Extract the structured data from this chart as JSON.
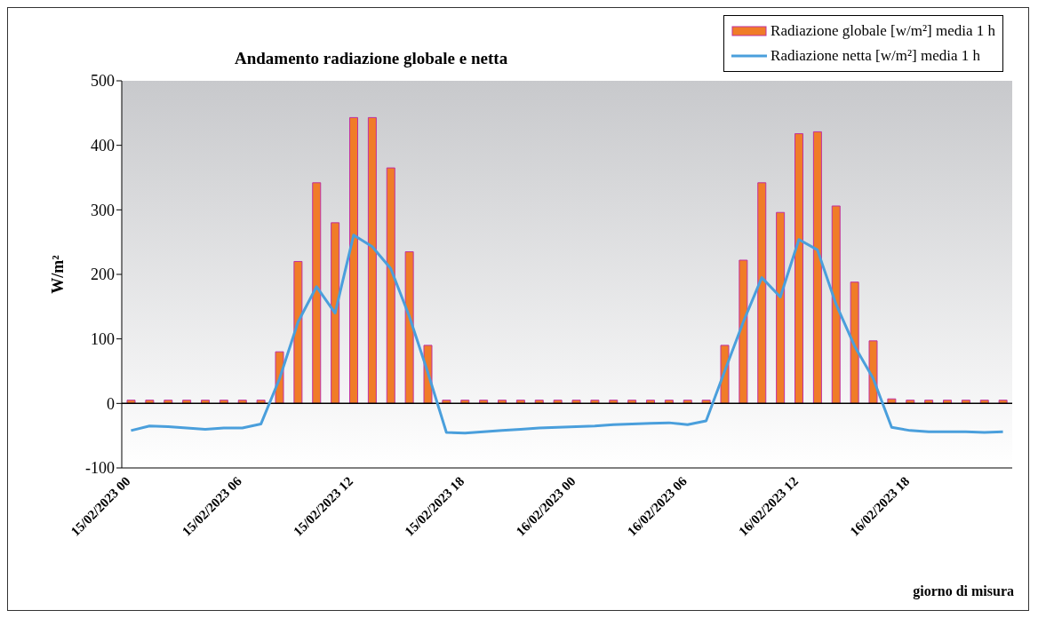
{
  "chart_data": {
    "type": "bar",
    "title": "Andamento radiazione globale e netta",
    "annotations": [
      "giorno di misura"
    ],
    "ylabel": "W/m²",
    "categories": [
      "15/02/2023 00",
      null,
      null,
      null,
      null,
      null,
      "15/02/2023 06",
      null,
      null,
      null,
      null,
      null,
      "15/02/2023 12",
      null,
      null,
      null,
      null,
      null,
      "15/02/2023 18",
      null,
      null,
      null,
      null,
      null,
      "16/02/2023 00",
      null,
      null,
      null,
      null,
      null,
      "16/02/2023 06",
      null,
      null,
      null,
      null,
      null,
      "16/02/2023 12",
      null,
      null,
      null,
      null,
      null,
      "16/02/2023 18",
      null,
      null,
      null,
      null,
      null
    ],
    "series": [
      {
        "name": "Radiazione globale [w/m²] media 1 h",
        "color": "#f07c28",
        "values": [
          5,
          5,
          5,
          5,
          5,
          5,
          5,
          5,
          80,
          220,
          342,
          280,
          443,
          443,
          365,
          235,
          90,
          5,
          5,
          5,
          5,
          5,
          5,
          5,
          5,
          5,
          5,
          5,
          5,
          5,
          5,
          5,
          90,
          222,
          342,
          296,
          418,
          421,
          306,
          188,
          97,
          7,
          5,
          5,
          5,
          5,
          5,
          5
        ]
      },
      {
        "name": "Radiazione netta [w/m²] media 1 h",
        "type": "line",
        "color": "#4a9fdc",
        "values": [
          -42,
          -35,
          -36,
          -38,
          -40,
          -38,
          -38,
          -32,
          38,
          126,
          181,
          140,
          261,
          243,
          209,
          135,
          48,
          -45,
          -46,
          -44,
          -42,
          -40,
          -38,
          -37,
          -36,
          -35,
          -33,
          -32,
          -31,
          -30,
          -33,
          -27,
          50,
          126,
          195,
          165,
          254,
          238,
          154,
          89,
          39,
          -37,
          -42,
          -44,
          -44,
          -44,
          -45,
          -44
        ]
      }
    ],
    "ylim": [
      -100,
      500
    ],
    "yticks": [
      -100,
      0,
      100,
      200,
      300,
      400,
      500
    ],
    "grid": false,
    "legend": "top right",
    "ref_lines": [
      {
        "axis": "y",
        "value": 0,
        "color": "#000000"
      }
    ]
  }
}
